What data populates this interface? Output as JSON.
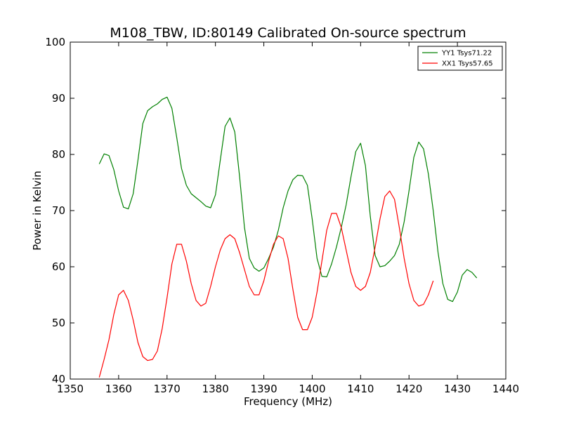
{
  "chart_data": {
    "type": "line",
    "title": "M108_TBW, ID:80149 Calibrated On-source spectrum",
    "xlabel": "Frequency (MHz)",
    "ylabel": "Power in Kelvin",
    "xlim": [
      1350,
      1440
    ],
    "ylim": [
      40,
      100
    ],
    "xticks": [
      1350,
      1360,
      1370,
      1380,
      1390,
      1400,
      1410,
      1420,
      1430,
      1440
    ],
    "yticks": [
      40,
      50,
      60,
      70,
      80,
      90,
      100
    ],
    "grid": false,
    "legend_position": "top-right",
    "series": [
      {
        "name": "YY1 Tsys71.22",
        "color": "#008000",
        "points": [
          [
            1356,
            78.3
          ],
          [
            1357,
            80.1
          ],
          [
            1358,
            79.8
          ],
          [
            1359,
            77.3
          ],
          [
            1360,
            73.5
          ],
          [
            1361,
            70.6
          ],
          [
            1362,
            70.3
          ],
          [
            1363,
            73.0
          ],
          [
            1364,
            79.0
          ],
          [
            1365,
            85.5
          ],
          [
            1366,
            87.8
          ],
          [
            1367,
            88.5
          ],
          [
            1368,
            89.0
          ],
          [
            1369,
            89.8
          ],
          [
            1370,
            90.2
          ],
          [
            1371,
            88.2
          ],
          [
            1372,
            83.0
          ],
          [
            1373,
            77.5
          ],
          [
            1374,
            74.5
          ],
          [
            1375,
            73.0
          ],
          [
            1376,
            72.3
          ],
          [
            1377,
            71.6
          ],
          [
            1378,
            70.8
          ],
          [
            1379,
            70.5
          ],
          [
            1380,
            72.8
          ],
          [
            1381,
            79.0
          ],
          [
            1382,
            85.0
          ],
          [
            1383,
            86.5
          ],
          [
            1384,
            84.0
          ],
          [
            1385,
            76.0
          ],
          [
            1386,
            67.0
          ],
          [
            1387,
            61.5
          ],
          [
            1388,
            59.8
          ],
          [
            1389,
            59.2
          ],
          [
            1390,
            59.8
          ],
          [
            1391,
            61.5
          ],
          [
            1392,
            63.5
          ],
          [
            1393,
            66.5
          ],
          [
            1394,
            70.5
          ],
          [
            1395,
            73.5
          ],
          [
            1396,
            75.5
          ],
          [
            1397,
            76.3
          ],
          [
            1398,
            76.2
          ],
          [
            1399,
            74.5
          ],
          [
            1400,
            68.5
          ],
          [
            1401,
            61.5
          ],
          [
            1402,
            58.3
          ],
          [
            1403,
            58.2
          ],
          [
            1404,
            60.5
          ],
          [
            1405,
            63.5
          ],
          [
            1406,
            67.0
          ],
          [
            1407,
            71.0
          ],
          [
            1408,
            76.0
          ],
          [
            1409,
            80.5
          ],
          [
            1410,
            82.0
          ],
          [
            1411,
            78.0
          ],
          [
            1412,
            69.0
          ],
          [
            1413,
            62.0
          ],
          [
            1414,
            60.0
          ],
          [
            1415,
            60.2
          ],
          [
            1416,
            61.0
          ],
          [
            1417,
            62.0
          ],
          [
            1418,
            64.0
          ],
          [
            1419,
            68.0
          ],
          [
            1420,
            73.5
          ],
          [
            1421,
            79.5
          ],
          [
            1422,
            82.2
          ],
          [
            1423,
            81.0
          ],
          [
            1424,
            76.5
          ],
          [
            1425,
            70.0
          ],
          [
            1426,
            62.5
          ],
          [
            1427,
            57.0
          ],
          [
            1428,
            54.2
          ],
          [
            1429,
            53.8
          ],
          [
            1430,
            55.5
          ],
          [
            1431,
            58.5
          ],
          [
            1432,
            59.5
          ],
          [
            1433,
            59.0
          ],
          [
            1434,
            58.0
          ]
        ]
      },
      {
        "name": "XX1 Tsys57.65",
        "color": "#ff0000",
        "points": [
          [
            1356,
            40.3
          ],
          [
            1357,
            43.5
          ],
          [
            1358,
            47.0
          ],
          [
            1359,
            51.5
          ],
          [
            1360,
            55.0
          ],
          [
            1361,
            55.8
          ],
          [
            1362,
            54.0
          ],
          [
            1363,
            50.5
          ],
          [
            1364,
            46.5
          ],
          [
            1365,
            44.0
          ],
          [
            1366,
            43.3
          ],
          [
            1367,
            43.5
          ],
          [
            1368,
            45.0
          ],
          [
            1369,
            49.0
          ],
          [
            1370,
            54.5
          ],
          [
            1371,
            60.5
          ],
          [
            1372,
            64.0
          ],
          [
            1373,
            64.0
          ],
          [
            1374,
            61.0
          ],
          [
            1375,
            57.0
          ],
          [
            1376,
            54.0
          ],
          [
            1377,
            53.0
          ],
          [
            1378,
            53.5
          ],
          [
            1379,
            56.5
          ],
          [
            1380,
            60.0
          ],
          [
            1381,
            63.0
          ],
          [
            1382,
            65.0
          ],
          [
            1383,
            65.7
          ],
          [
            1384,
            65.0
          ],
          [
            1385,
            62.5
          ],
          [
            1386,
            59.5
          ],
          [
            1387,
            56.5
          ],
          [
            1388,
            55.0
          ],
          [
            1389,
            55.0
          ],
          [
            1390,
            57.5
          ],
          [
            1391,
            61.0
          ],
          [
            1392,
            64.0
          ],
          [
            1393,
            65.5
          ],
          [
            1394,
            65.0
          ],
          [
            1395,
            61.5
          ],
          [
            1396,
            56.0
          ],
          [
            1397,
            51.0
          ],
          [
            1398,
            48.8
          ],
          [
            1399,
            48.8
          ],
          [
            1400,
            51.0
          ],
          [
            1401,
            55.5
          ],
          [
            1402,
            61.0
          ],
          [
            1403,
            66.5
          ],
          [
            1404,
            69.5
          ],
          [
            1405,
            69.5
          ],
          [
            1406,
            67.0
          ],
          [
            1407,
            63.0
          ],
          [
            1408,
            59.0
          ],
          [
            1409,
            56.5
          ],
          [
            1410,
            55.8
          ],
          [
            1411,
            56.5
          ],
          [
            1412,
            59.0
          ],
          [
            1413,
            63.5
          ],
          [
            1414,
            68.5
          ],
          [
            1415,
            72.5
          ],
          [
            1416,
            73.5
          ],
          [
            1417,
            72.0
          ],
          [
            1418,
            67.0
          ],
          [
            1419,
            61.5
          ],
          [
            1420,
            57.0
          ],
          [
            1421,
            54.0
          ],
          [
            1422,
            53.0
          ],
          [
            1423,
            53.3
          ],
          [
            1424,
            55.0
          ],
          [
            1425,
            57.5
          ]
        ]
      }
    ]
  }
}
